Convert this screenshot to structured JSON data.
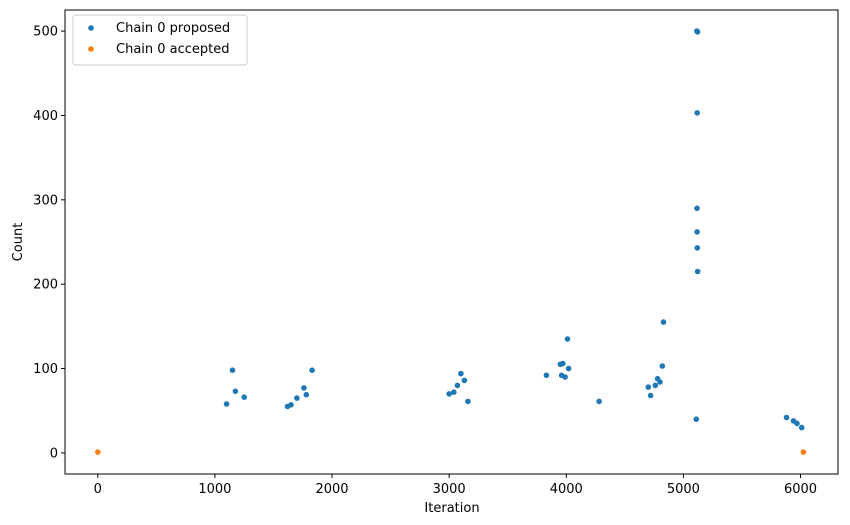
{
  "chart_data": {
    "type": "scatter",
    "xlabel": "Iteration",
    "ylabel": "Count",
    "xlim": [
      -280,
      6320
    ],
    "ylim": [
      -25,
      525
    ],
    "xticks": [
      0,
      1000,
      2000,
      3000,
      4000,
      5000,
      6000
    ],
    "yticks": [
      0,
      100,
      200,
      300,
      400,
      500
    ],
    "grid": false,
    "legend_position": "top-left",
    "series": [
      {
        "name": "Chain 0 proposed",
        "color": "#1f77b4",
        "x": [
          1150,
          1250,
          1100,
          1175,
          1830,
          1760,
          1700,
          1650,
          1780,
          1620,
          3100,
          3070,
          3040,
          3130,
          3000,
          3160,
          3950,
          3970,
          4010,
          4020,
          3960,
          3990,
          3830,
          4280,
          4830,
          4820,
          4780,
          4760,
          4700,
          4800,
          4720,
          5115,
          5120,
          5118,
          5116,
          5117,
          5119,
          5121,
          5110,
          5880,
          5940,
          5970,
          6010
        ],
        "y": [
          98,
          66,
          58,
          73,
          98,
          77,
          65,
          57,
          69,
          55,
          94,
          80,
          72,
          86,
          70,
          61,
          105,
          106,
          135,
          100,
          92,
          90,
          92,
          61,
          155,
          103,
          88,
          80,
          78,
          84,
          68,
          500,
          499,
          403,
          290,
          262,
          243,
          215,
          40,
          42,
          38,
          35,
          30
        ]
      },
      {
        "name": "Chain 0 accepted",
        "color": "#ff7f0e",
        "x": [
          0,
          6025
        ],
        "y": [
          1,
          1
        ]
      }
    ]
  }
}
